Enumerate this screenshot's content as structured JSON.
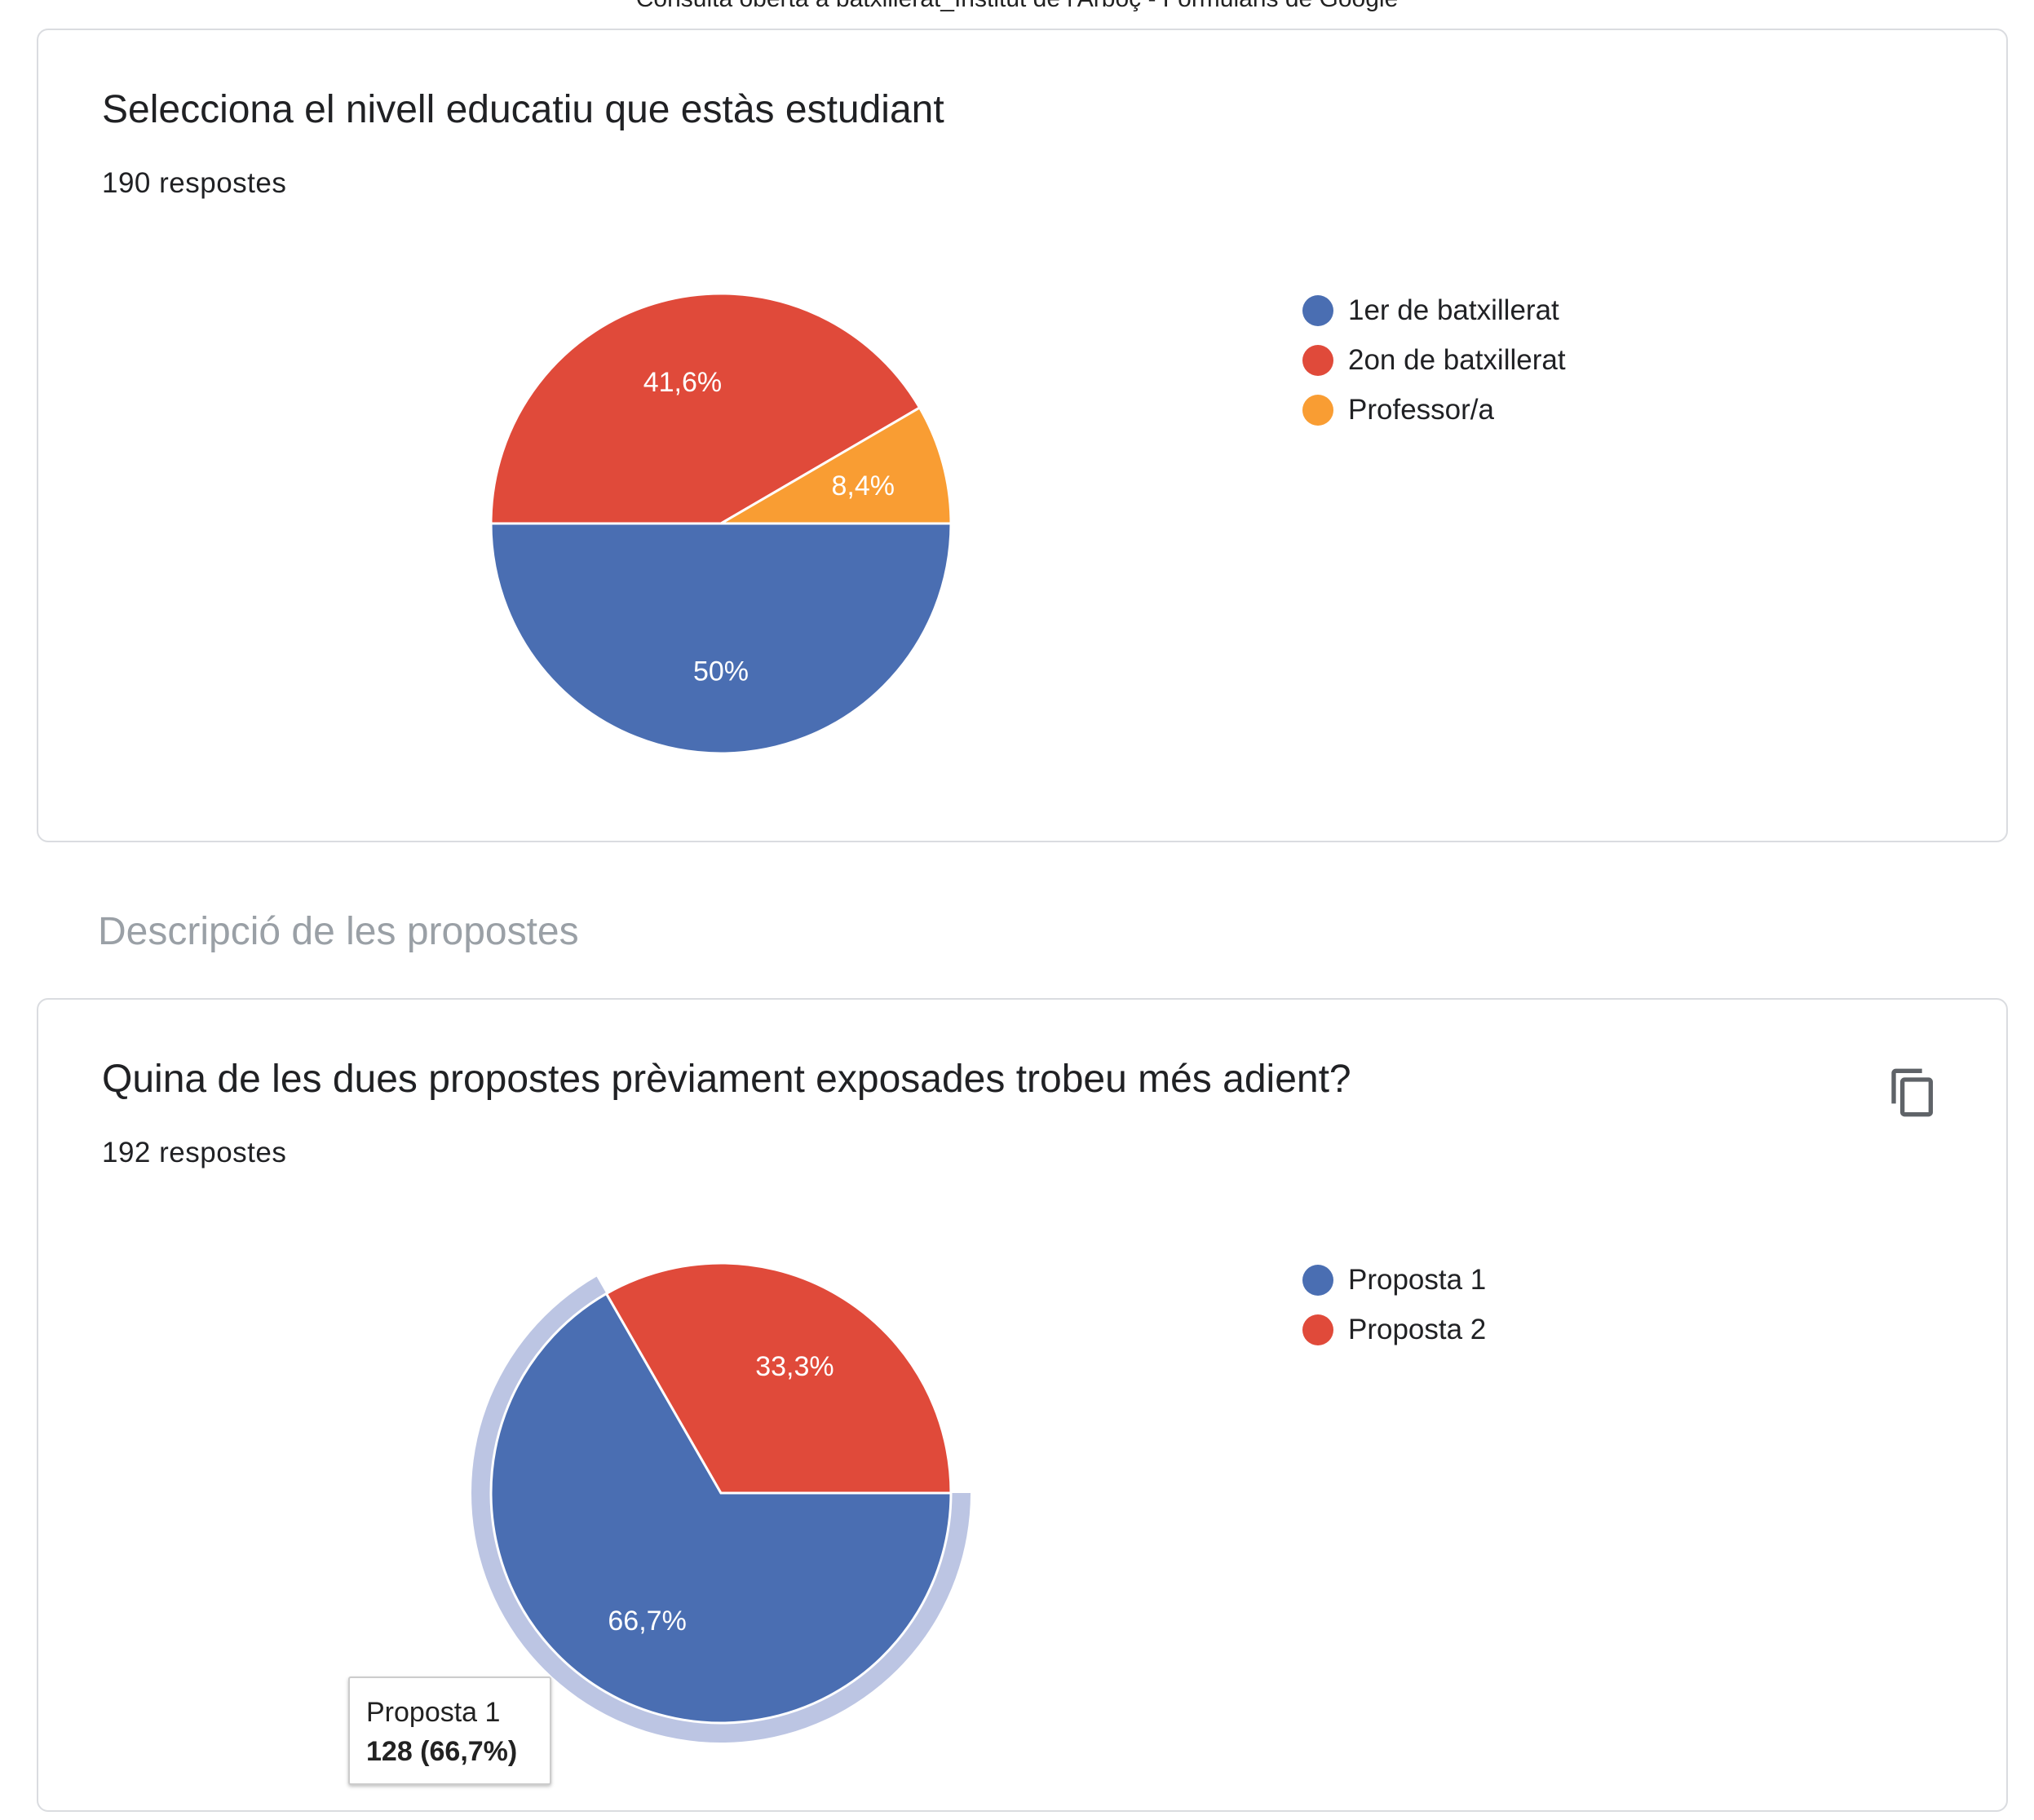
{
  "page": {
    "title": "Consulta oberta a batxillerat_Institut de l'Arboç - Formularis de Google"
  },
  "questions": [
    {
      "title": "Selecciona el nivell educatiu que estàs estudiant",
      "responses": "190 respostes",
      "chart_data": {
        "type": "pie",
        "categories": [
          "1er de batxillerat",
          "2on de batxillerat",
          "Professor/a"
        ],
        "values": [
          50,
          41.6,
          8.4
        ],
        "labels": [
          "50%",
          "41,6%",
          "8,4%"
        ],
        "colors": [
          "#4a6eb2",
          "#e04a3a",
          "#f99d33"
        ],
        "legend": "right"
      }
    },
    {
      "title": "Quina de les dues propostes prèviament exposades trobeu més adient?",
      "responses": "192 respostes",
      "copy_icon": "copy-icon",
      "chart_data": {
        "type": "pie",
        "categories": [
          "Proposta 1",
          "Proposta 2"
        ],
        "values": [
          66.7,
          33.3
        ],
        "labels": [
          "66,7%",
          "33,3%"
        ],
        "colors": [
          "#4a6eb2",
          "#e04a3a"
        ],
        "highlight_color": "#bcc5e3",
        "legend": "right",
        "tooltip": {
          "label": "Proposta 1",
          "value": "128 (66,7%)"
        }
      }
    }
  ],
  "section": {
    "title": "Descripció de les propostes"
  }
}
